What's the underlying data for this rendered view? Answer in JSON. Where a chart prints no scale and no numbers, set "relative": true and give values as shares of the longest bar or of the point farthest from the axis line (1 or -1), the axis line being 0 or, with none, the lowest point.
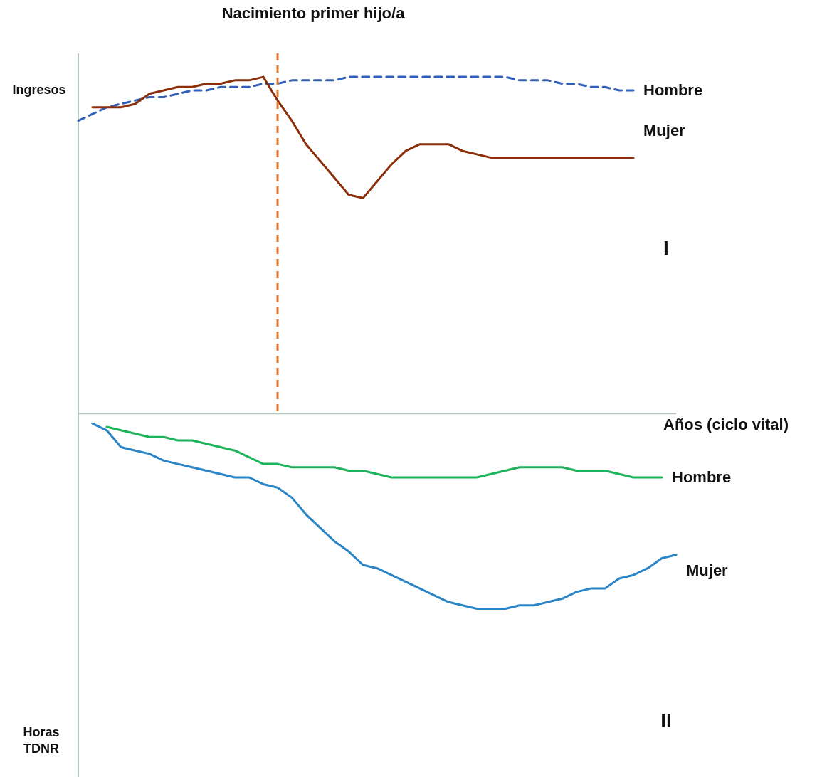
{
  "chart_data": {
    "type": "line",
    "relative": true,
    "xlabel": "Años (ciclo vital)",
    "ylabel": "Ingresos",
    "annotations": [
      "Nacimiento primer hijo/a",
      "Horas TDNR",
      "I",
      "II"
    ],
    "categories": [
      null,
      null,
      null,
      null,
      null,
      null,
      null,
      null,
      null,
      null,
      null,
      null,
      null,
      null,
      null,
      null,
      null,
      null,
      null,
      null,
      null,
      null,
      null,
      null,
      null,
      null,
      null,
      null,
      null,
      null,
      null,
      null,
      null,
      null,
      null,
      null,
      null,
      null,
      null,
      null,
      null,
      null,
      null
    ],
    "series": [
      {
        "name": "Hombre",
        "color": "#3060b8",
        "line_style": "dashed",
        "values": [
          0.87,
          0.89,
          0.91,
          0.92,
          0.93,
          0.94,
          0.94,
          0.95,
          0.96,
          0.96,
          0.97,
          0.97,
          0.97,
          0.98,
          0.98,
          0.99,
          0.99,
          0.99,
          0.99,
          1.0,
          1.0,
          1.0,
          1.0,
          1.0,
          1.0,
          1.0,
          1.0,
          1.0,
          1.0,
          1.0,
          1.0,
          0.99,
          0.99,
          0.99,
          0.98,
          0.98,
          0.97,
          0.97,
          0.96,
          0.96,
          null,
          null,
          null
        ]
      },
      {
        "name": "Mujer",
        "color": "#8b2e0a",
        "line_style": "solid",
        "values": [
          null,
          0.91,
          0.91,
          0.91,
          0.92,
          0.95,
          0.96,
          0.97,
          0.97,
          0.98,
          0.98,
          0.99,
          0.99,
          1.0,
          0.93,
          0.87,
          0.8,
          0.75,
          0.7,
          0.65,
          0.64,
          0.69,
          0.74,
          0.78,
          0.8,
          0.8,
          0.8,
          0.78,
          0.77,
          0.76,
          0.76,
          0.76,
          0.76,
          0.76,
          0.76,
          0.76,
          0.76,
          0.76,
          0.76,
          0.76,
          null,
          null,
          null
        ]
      },
      {
        "name": "Hombre",
        "color": "#1db35a",
        "line_style": "solid",
        "values": [
          null,
          null,
          -0.04,
          -0.05,
          -0.06,
          -0.07,
          -0.07,
          -0.08,
          -0.08,
          -0.09,
          -0.1,
          -0.11,
          -0.13,
          -0.15,
          -0.15,
          -0.16,
          -0.16,
          -0.16,
          -0.16,
          -0.17,
          -0.17,
          -0.18,
          -0.19,
          -0.19,
          -0.19,
          -0.19,
          -0.19,
          -0.19,
          -0.19,
          -0.18,
          -0.17,
          -0.16,
          -0.16,
          -0.16,
          -0.16,
          -0.17,
          -0.17,
          -0.17,
          -0.18,
          -0.19,
          -0.19,
          -0.19,
          null
        ]
      },
      {
        "name": "Mujer",
        "color": "#2a85c8",
        "line_style": "solid",
        "values": [
          null,
          -0.03,
          -0.05,
          -0.1,
          -0.11,
          -0.12,
          -0.14,
          -0.15,
          -0.16,
          -0.17,
          -0.18,
          -0.19,
          -0.19,
          -0.21,
          -0.22,
          -0.25,
          -0.3,
          -0.34,
          -0.38,
          -0.41,
          -0.45,
          -0.46,
          -0.48,
          -0.5,
          -0.52,
          -0.54,
          -0.56,
          -0.57,
          -0.58,
          -0.58,
          -0.58,
          -0.57,
          -0.57,
          -0.56,
          -0.55,
          -0.53,
          -0.52,
          -0.52,
          -0.49,
          -0.48,
          -0.46,
          -0.43,
          -0.42
        ]
      }
    ]
  }
}
